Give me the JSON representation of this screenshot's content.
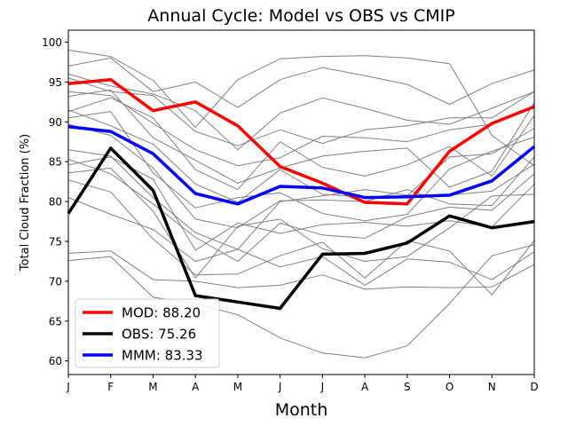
{
  "chart_data": {
    "type": "line",
    "title": "Annual Cycle: Model vs OBS vs CMIP",
    "xlabel": "Month",
    "ylabel": "Total Cloud Fraction (%)",
    "categories": [
      "J",
      "F",
      "M",
      "A",
      "M",
      "J",
      "J",
      "A",
      "S",
      "O",
      "N",
      "D"
    ],
    "ylim": [
      58.3,
      101.5
    ],
    "yticks": [
      "60",
      "65",
      "70",
      "75",
      "80",
      "85",
      "90",
      "95",
      "100"
    ],
    "legend_position": "lower-left",
    "series": [
      {
        "name": "MOD",
        "legend_label": "MOD: 88.20",
        "color": "#ff0000",
        "values": [
          94.8,
          95.3,
          91.4,
          92.5,
          89.5,
          84.4,
          82.3,
          79.9,
          79.7,
          86.3,
          89.8,
          91.9
        ]
      },
      {
        "name": "OBS",
        "legend_label": "OBS: 75.26",
        "color": "#000000",
        "values": [
          78.5,
          86.7,
          81.4,
          68.2,
          67.4,
          66.6,
          73.4,
          73.5,
          74.8,
          78.2,
          76.7,
          77.5
        ]
      },
      {
        "name": "MMM",
        "legend_label": "MMM: 83.33",
        "color": "#0000ff",
        "values": [
          89.4,
          88.8,
          86.0,
          81.0,
          79.7,
          81.9,
          81.7,
          80.5,
          80.6,
          80.8,
          82.6,
          86.9
        ]
      }
    ],
    "cmip_color": "#808080",
    "cmip_models": [
      [
        99.0,
        98.2,
        95.2,
        89.3,
        95.3,
        97.9,
        98.2,
        98.3,
        98.0,
        97.3,
        88.3,
        84.5
      ],
      [
        97.0,
        98.0,
        93.8,
        95.0,
        91.8,
        95.3,
        96.8,
        95.8,
        94.7,
        92.2,
        94.8,
        96.5
      ],
      [
        96.0,
        94.5,
        93.5,
        91.4,
        86.5,
        91.1,
        93.0,
        91.7,
        90.2,
        89.7,
        91.7,
        93.8
      ],
      [
        95.5,
        93.8,
        93.3,
        88.8,
        87.0,
        89.0,
        87.3,
        89.0,
        89.5,
        90.5,
        90.5,
        93.8
      ],
      [
        93.8,
        93.3,
        89.8,
        86.5,
        84.5,
        85.5,
        88.2,
        88.0,
        87.5,
        89.0,
        89.7,
        91.9
      ],
      [
        93.2,
        94.0,
        88.0,
        85.2,
        82.3,
        84.2,
        85.7,
        86.3,
        86.7,
        81.8,
        83.8,
        92.4
      ],
      [
        91.3,
        93.0,
        90.5,
        84.0,
        81.5,
        87.5,
        84.3,
        83.2,
        84.6,
        86.9,
        83.2,
        90.8
      ],
      [
        91.5,
        89.5,
        87.2,
        82.2,
        79.9,
        84.0,
        80.9,
        80.6,
        80.7,
        85.6,
        86.0,
        89.2
      ],
      [
        90.5,
        91.3,
        83.6,
        79.2,
        80.5,
        81.1,
        78.5,
        77.6,
        78.4,
        84.1,
        86.3,
        88.1
      ],
      [
        89.7,
        88.3,
        84.2,
        77.8,
        76.7,
        80.1,
        80.2,
        80.0,
        81.5,
        79.7,
        79.5,
        85.6
      ],
      [
        86.5,
        85.7,
        80.5,
        76.1,
        74.0,
        80.0,
        80.7,
        81.5,
        80.8,
        80.8,
        81.3,
        84.7
      ],
      [
        85.3,
        83.5,
        79.7,
        75.5,
        72.5,
        77.3,
        75.8,
        75.4,
        78.1,
        79.3,
        78.9,
        83.5
      ],
      [
        84.6,
        85.6,
        82.8,
        73.9,
        77.3,
        76.0,
        77.1,
        77.4,
        76.9,
        77.6,
        76.8,
        82.2
      ],
      [
        83.6,
        84.2,
        78.8,
        70.4,
        76.9,
        77.8,
        74.1,
        72.5,
        73.1,
        76.7,
        80.7,
        80.9
      ],
      [
        82.7,
        81.2,
        75.3,
        70.8,
        70.9,
        73.2,
        74.9,
        70.4,
        75.1,
        73.8,
        68.3,
        75.1
      ],
      [
        73.5,
        73.8,
        70.2,
        70.0,
        69.2,
        69.5,
        70.8,
        69.0,
        69.3,
        69.2,
        69.3,
        72.1
      ],
      [
        72.6,
        73.1,
        68.0,
        67.2,
        65.8,
        62.9,
        61.0,
        60.4,
        61.9,
        67.2,
        73.2,
        74.6
      ],
      [
        80.5,
        78.4,
        76.5,
        72.5,
        74.0,
        71.8,
        73.1,
        69.5,
        72.8,
        72.4,
        70.2,
        73.7
      ]
    ]
  }
}
